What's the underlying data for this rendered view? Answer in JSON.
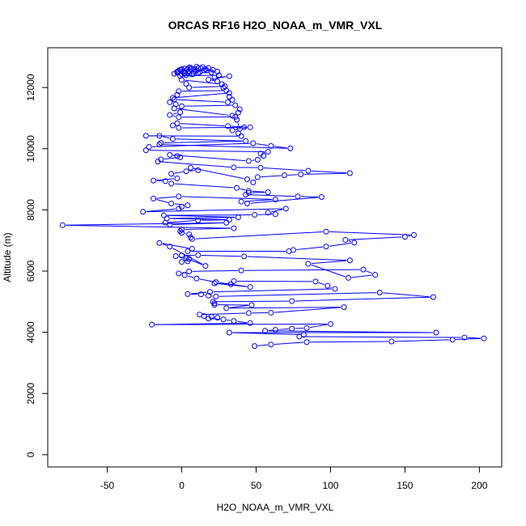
{
  "chart_data": {
    "type": "line",
    "title": "ORCAS RF16 H2O_NOAA_m_VMR_VXL",
    "xlabel": "H2O_NOAA_m_VMR_VXL",
    "ylabel": "Altitude (m)",
    "xlim": [
      -90,
      215
    ],
    "ylim": [
      -400,
      13300
    ],
    "xticks": [
      -50,
      0,
      50,
      100,
      150,
      200
    ],
    "yticks": [
      0,
      2000,
      4000,
      6000,
      8000,
      10000,
      12000
    ],
    "grid": false,
    "line_color": "#0000ff",
    "marker": "open-circle",
    "series": [
      {
        "points": [
          [
            49,
            3550
          ],
          [
            60,
            3600
          ],
          [
            84,
            3680
          ],
          [
            141,
            3700
          ],
          [
            182,
            3760
          ],
          [
            203,
            3800
          ],
          [
            190,
            3830
          ],
          [
            79,
            3860
          ],
          [
            82,
            3920
          ],
          [
            32,
            3990
          ],
          [
            171,
            3990
          ],
          [
            56,
            4050
          ],
          [
            63,
            4080
          ],
          [
            74,
            4120
          ],
          [
            84,
            4140
          ],
          [
            100,
            4270
          ],
          [
            -20,
            4250
          ],
          [
            46,
            4300
          ],
          [
            35,
            4370
          ],
          [
            28,
            4420
          ],
          [
            18,
            4450
          ],
          [
            24,
            4480
          ],
          [
            20,
            4510
          ],
          [
            15,
            4530
          ],
          [
            12,
            4580
          ],
          [
            45,
            4630
          ],
          [
            60,
            4640
          ],
          [
            109,
            4820
          ],
          [
            30,
            4790
          ],
          [
            47,
            4890
          ],
          [
            22,
            4900
          ],
          [
            22,
            4950
          ],
          [
            21,
            5000
          ],
          [
            74,
            5020
          ],
          [
            169,
            5150
          ],
          [
            133,
            5300
          ],
          [
            23,
            5170
          ],
          [
            18,
            5200
          ],
          [
            13,
            5240
          ],
          [
            4,
            5250
          ],
          [
            19,
            5320
          ],
          [
            103,
            5420
          ],
          [
            98,
            5520
          ],
          [
            90,
            5660
          ],
          [
            35,
            5670
          ],
          [
            33,
            5570
          ],
          [
            22,
            5600
          ],
          [
            46,
            5480
          ],
          [
            23,
            5640
          ],
          [
            10,
            5760
          ],
          [
            2,
            5870
          ],
          [
            -2,
            5920
          ],
          [
            5,
            5990
          ],
          [
            40,
            6020
          ],
          [
            122,
            6050
          ],
          [
            130,
            5880
          ],
          [
            112,
            5780
          ],
          [
            85,
            6240
          ],
          [
            113,
            6350
          ],
          [
            42,
            6480
          ],
          [
            11,
            6520
          ],
          [
            0,
            6510
          ],
          [
            -4,
            6490
          ],
          [
            5,
            6400
          ],
          [
            0,
            6300
          ],
          [
            4,
            6320
          ],
          [
            3,
            6420
          ],
          [
            16,
            6170
          ],
          [
            -8,
            6800
          ],
          [
            -15,
            6920
          ],
          [
            7,
            6730
          ],
          [
            4,
            6650
          ],
          [
            72,
            6650
          ],
          [
            75,
            6690
          ],
          [
            97,
            6800
          ],
          [
            116,
            6930
          ],
          [
            110,
            7020
          ],
          [
            150,
            7120
          ],
          [
            156,
            7180
          ],
          [
            97,
            7290
          ],
          [
            7,
            7050
          ],
          [
            6,
            7100
          ],
          [
            5,
            7200
          ],
          [
            0,
            7250
          ],
          [
            -1,
            7310
          ],
          [
            0,
            7360
          ],
          [
            35,
            7400
          ],
          [
            -80,
            7500
          ],
          [
            30,
            7580
          ],
          [
            -8,
            7520
          ],
          [
            -11,
            7580
          ],
          [
            11,
            7660
          ],
          [
            32,
            7680
          ],
          [
            -10,
            7720
          ],
          [
            38,
            7760
          ],
          [
            -12,
            7820
          ],
          [
            49,
            7840
          ],
          [
            63,
            7860
          ],
          [
            58,
            7910
          ],
          [
            70,
            8040
          ],
          [
            -26,
            7940
          ],
          [
            -2,
            8040
          ],
          [
            0,
            8100
          ],
          [
            4,
            8150
          ],
          [
            -7,
            8210
          ],
          [
            -19,
            8370
          ],
          [
            -2,
            8440
          ],
          [
            63,
            8340
          ],
          [
            40,
            8270
          ],
          [
            44,
            8210
          ],
          [
            94,
            8420
          ],
          [
            78,
            8440
          ],
          [
            43,
            8500
          ],
          [
            45,
            8560
          ],
          [
            58,
            8580
          ],
          [
            45,
            8620
          ],
          [
            37,
            8720
          ],
          [
            -7,
            8860
          ],
          [
            -11,
            8940
          ],
          [
            -19,
            8960
          ],
          [
            -3,
            9030
          ],
          [
            -7,
            9180
          ],
          [
            3,
            9260
          ],
          [
            11,
            9300
          ],
          [
            6,
            9380
          ],
          [
            44,
            9000
          ],
          [
            48,
            8900
          ],
          [
            51,
            9070
          ],
          [
            69,
            9130
          ],
          [
            80,
            9160
          ],
          [
            113,
            9200
          ],
          [
            85,
            9280
          ],
          [
            53,
            9380
          ],
          [
            35,
            9390
          ],
          [
            -16,
            9580
          ],
          [
            -14,
            9650
          ],
          [
            -1,
            9720
          ],
          [
            -3,
            9760
          ],
          [
            -8,
            9800
          ],
          [
            45,
            9600
          ],
          [
            51,
            9640
          ],
          [
            55,
            9770
          ],
          [
            53,
            9840
          ],
          [
            58,
            9900
          ],
          [
            -24,
            9950
          ],
          [
            -22,
            10060
          ],
          [
            48,
            10180
          ],
          [
            60,
            10090
          ],
          [
            73,
            10010
          ],
          [
            -15,
            10140
          ],
          [
            -14,
            10190
          ],
          [
            43,
            10250
          ],
          [
            -6,
            10320
          ],
          [
            -15,
            10420
          ],
          [
            -24,
            10420
          ],
          [
            40,
            10410
          ],
          [
            38,
            10500
          ],
          [
            34,
            10600
          ],
          [
            42,
            10700
          ],
          [
            -2,
            10680
          ],
          [
            -6,
            10760
          ],
          [
            -3,
            10830
          ],
          [
            31,
            10740
          ],
          [
            46,
            10700
          ],
          [
            39,
            10650
          ],
          [
            37,
            10950
          ],
          [
            36,
            11040
          ],
          [
            -2,
            11030
          ],
          [
            -8,
            11100
          ],
          [
            -1,
            11190
          ],
          [
            -5,
            11320
          ],
          [
            34,
            11080
          ],
          [
            38,
            11180
          ],
          [
            39,
            11290
          ],
          [
            36,
            11420
          ],
          [
            0,
            11390
          ],
          [
            -4,
            11450
          ],
          [
            -8,
            11520
          ],
          [
            -5,
            11610
          ],
          [
            31,
            11520
          ],
          [
            34,
            11600
          ],
          [
            32,
            11700
          ],
          [
            32,
            11820
          ],
          [
            -6,
            11660
          ],
          [
            -3,
            11760
          ],
          [
            -2,
            11880
          ],
          [
            30,
            11900
          ],
          [
            28,
            11990
          ],
          [
            29,
            12040
          ],
          [
            5,
            12000
          ],
          [
            3,
            12120
          ],
          [
            0,
            12250
          ],
          [
            27,
            12110
          ],
          [
            24,
            12200
          ],
          [
            18,
            12260
          ],
          [
            32,
            12370
          ],
          [
            22,
            12320
          ],
          [
            25,
            12400
          ],
          [
            -1,
            12380
          ],
          [
            -5,
            12450
          ],
          [
            -3,
            12480
          ],
          [
            2,
            12500
          ],
          [
            -2,
            12550
          ],
          [
            4,
            12600
          ],
          [
            6,
            12650
          ],
          [
            10,
            12680
          ],
          [
            14,
            12670
          ],
          [
            18,
            12640
          ],
          [
            21,
            12580
          ],
          [
            24,
            12520
          ],
          [
            15,
            12560
          ],
          [
            8,
            12520
          ],
          [
            4,
            12480
          ],
          [
            0,
            12440
          ],
          [
            3,
            12400
          ],
          [
            8,
            12450
          ],
          [
            12,
            12500
          ],
          [
            10,
            12560
          ],
          [
            6,
            12600
          ],
          [
            2,
            12620
          ],
          [
            -1,
            12580
          ],
          [
            1,
            12530
          ],
          [
            5,
            12540
          ],
          [
            9,
            12600
          ],
          [
            13,
            12620
          ],
          [
            17,
            12560
          ],
          [
            20,
            12500
          ],
          [
            11,
            12470
          ],
          [
            7,
            12430
          ],
          [
            2,
            12460
          ],
          [
            -3,
            12520
          ],
          [
            0,
            12600
          ],
          [
            5,
            12660
          ],
          [
            11,
            12630
          ],
          [
            16,
            12600
          ]
        ]
      }
    ]
  }
}
